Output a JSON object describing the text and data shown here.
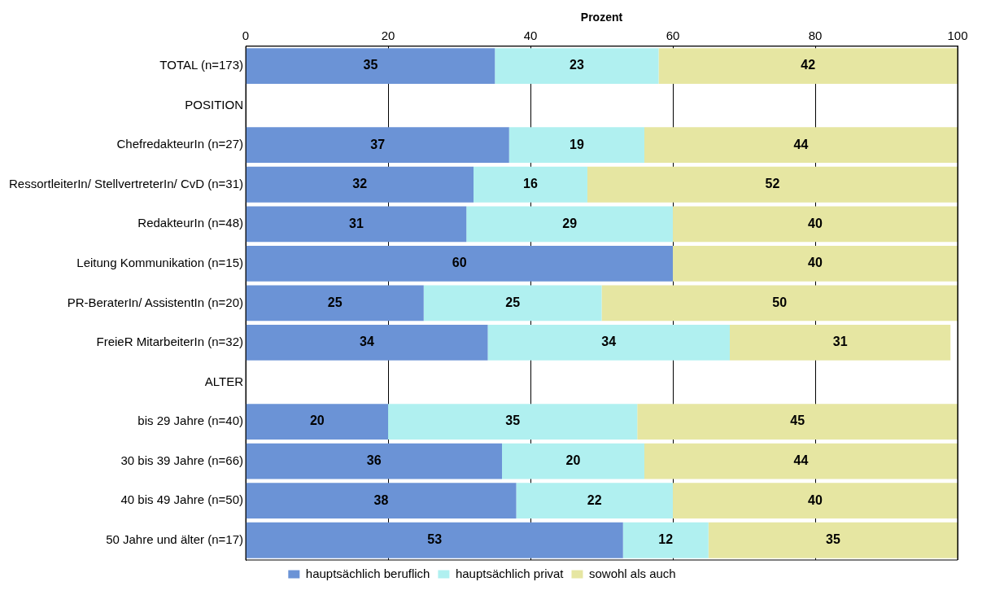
{
  "chart_data": {
    "type": "bar",
    "orientation": "horizontal",
    "stacked": true,
    "xlabel": "Prozent",
    "categories": [
      "TOTAL (n=173)",
      "POSITION",
      "ChefredakteurIn (n=27)",
      "RessortleiterIn/ StellvertreterIn/ CvD (n=31)",
      "RedakteurIn (n=48)",
      "Leitung Kommunikation (n=15)",
      "PR-BeraterIn/ AssistentIn (n=20)",
      "FreieR MitarbeiterIn (n=32)",
      "ALTER",
      "bis 29 Jahre (n=40)",
      "30 bis 39 Jahre (n=66)",
      "40 bis 49 Jahre (n=50)",
      "50 Jahre und älter (n=17)"
    ],
    "series": [
      {
        "name": "hauptsächlich beruflich",
        "color": "#6b93d6",
        "values": [
          35,
          null,
          37,
          32,
          31,
          60,
          25,
          34,
          null,
          20,
          36,
          38,
          53
        ]
      },
      {
        "name": "hauptsächlich privat",
        "color": "#b0f0f0",
        "values": [
          23,
          null,
          19,
          16,
          29,
          null,
          25,
          34,
          null,
          35,
          20,
          22,
          12
        ]
      },
      {
        "name": "sowohl als auch",
        "color": "#e6e6a2",
        "values": [
          42,
          null,
          44,
          52,
          40,
          40,
          50,
          31,
          null,
          45,
          44,
          40,
          35
        ]
      }
    ],
    "xlim": [
      0,
      100
    ],
    "xticks": [
      0,
      20,
      40,
      60,
      80,
      100
    ],
    "grid": "x",
    "legend": "bottom",
    "data_labels": true
  }
}
